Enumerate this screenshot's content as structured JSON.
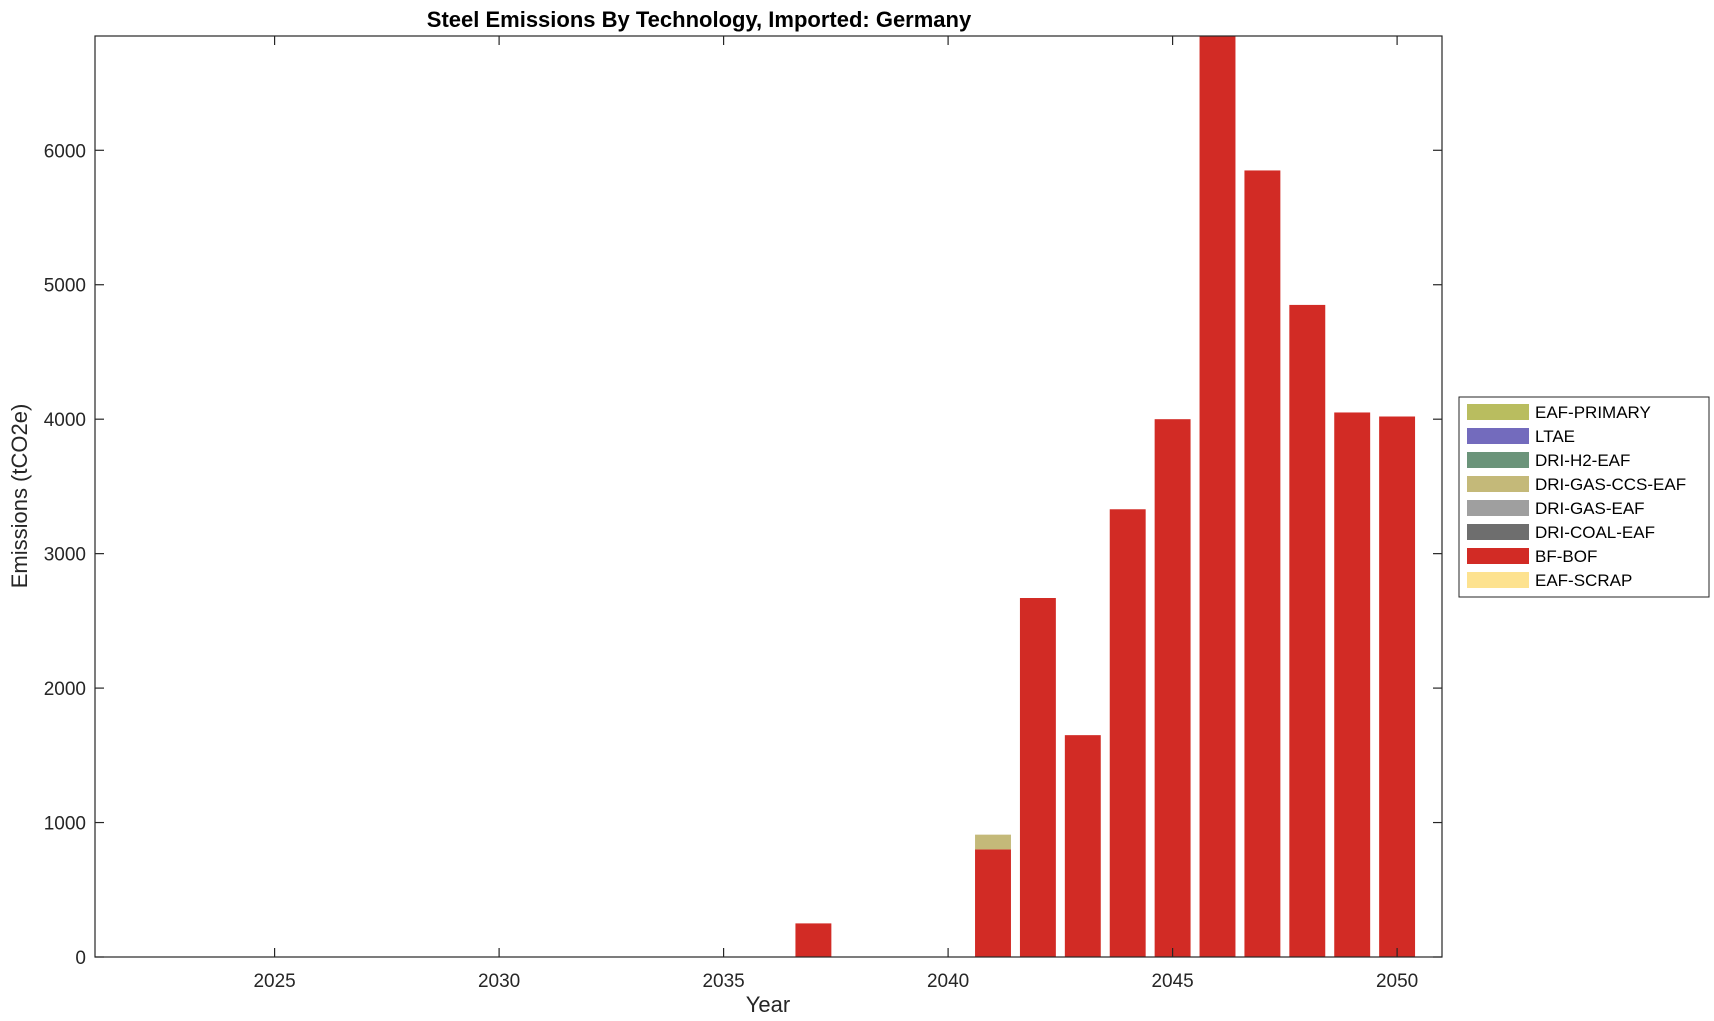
{
  "chart_data": {
    "type": "bar",
    "stacked": true,
    "title": "Steel Emissions By Technology, Imported: Germany",
    "xlabel": "Year",
    "ylabel": "Emissions (tCO2e)",
    "xlim": [
      2021,
      2051
    ],
    "ylim": [
      0,
      6850
    ],
    "xticks": [
      2025,
      2030,
      2035,
      2040,
      2045,
      2050
    ],
    "yticks": [
      0,
      1000,
      2000,
      3000,
      4000,
      5000,
      6000
    ],
    "grid": false,
    "legend_position": "right-outside",
    "x": [
      2022,
      2023,
      2024,
      2025,
      2026,
      2027,
      2028,
      2029,
      2030,
      2031,
      2032,
      2033,
      2034,
      2035,
      2036,
      2037,
      2038,
      2039,
      2040,
      2041,
      2042,
      2043,
      2044,
      2045,
      2046,
      2047,
      2048,
      2049,
      2050
    ],
    "series": [
      {
        "name": "EAF-PRIMARY",
        "color": "#b9bd5f",
        "values": [
          0,
          0,
          0,
          0,
          0,
          0,
          0,
          0,
          0,
          0,
          0,
          0,
          0,
          0,
          0,
          0,
          0,
          0,
          0,
          0,
          0,
          0,
          0,
          0,
          0,
          0,
          0,
          0,
          0
        ]
      },
      {
        "name": "LTAE",
        "color": "#736bbd",
        "values": [
          0,
          0,
          0,
          0,
          0,
          0,
          0,
          0,
          0,
          0,
          0,
          0,
          0,
          0,
          0,
          0,
          0,
          0,
          0,
          0,
          0,
          0,
          0,
          0,
          0,
          0,
          0,
          0,
          0
        ]
      },
      {
        "name": "DRI-H2-EAF",
        "color": "#6b947a",
        "values": [
          0,
          0,
          0,
          0,
          0,
          0,
          0,
          0,
          0,
          0,
          0,
          0,
          0,
          0,
          0,
          0,
          0,
          0,
          0,
          0,
          0,
          0,
          0,
          0,
          0,
          0,
          0,
          0,
          0
        ]
      },
      {
        "name": "DRI-GAS-CCS-EAF",
        "color": "#c4b979",
        "values": [
          0,
          0,
          0,
          0,
          0,
          0,
          0,
          0,
          0,
          0,
          0,
          0,
          0,
          0,
          0,
          0,
          0,
          0,
          0,
          110,
          0,
          0,
          0,
          0,
          0,
          0,
          0,
          0,
          0
        ]
      },
      {
        "name": "DRI-GAS-EAF",
        "color": "#9f9f9f",
        "values": [
          0,
          0,
          0,
          0,
          0,
          0,
          0,
          0,
          0,
          0,
          0,
          0,
          0,
          0,
          0,
          0,
          0,
          0,
          0,
          0,
          0,
          0,
          0,
          0,
          0,
          0,
          0,
          0,
          0
        ]
      },
      {
        "name": "DRI-COAL-EAF",
        "color": "#6e6e6e",
        "values": [
          0,
          0,
          0,
          0,
          0,
          0,
          0,
          0,
          0,
          0,
          0,
          0,
          0,
          0,
          0,
          0,
          0,
          0,
          0,
          0,
          0,
          0,
          0,
          0,
          0,
          0,
          0,
          0,
          0
        ]
      },
      {
        "name": "BF-BOF",
        "color": "#d22b25",
        "values": [
          0,
          0,
          0,
          0,
          0,
          0,
          0,
          0,
          0,
          0,
          0,
          0,
          0,
          0,
          0,
          250,
          0,
          0,
          0,
          800,
          2670,
          1650,
          3330,
          4000,
          6850,
          5850,
          4850,
          4050,
          4020
        ]
      },
      {
        "name": "EAF-SCRAP",
        "color": "#fde28f",
        "values": [
          0,
          0,
          0,
          0,
          0,
          0,
          0,
          0,
          0,
          0,
          0,
          0,
          0,
          0,
          0,
          0,
          0,
          0,
          0,
          0,
          0,
          0,
          0,
          0,
          0,
          0,
          0,
          0,
          0
        ]
      }
    ],
    "stack_order": [
      "BF-BOF",
      "DRI-GAS-CCS-EAF",
      "EAF-PRIMARY",
      "LTAE",
      "DRI-H2-EAF",
      "DRI-GAS-EAF",
      "DRI-COAL-EAF",
      "EAF-SCRAP"
    ]
  }
}
